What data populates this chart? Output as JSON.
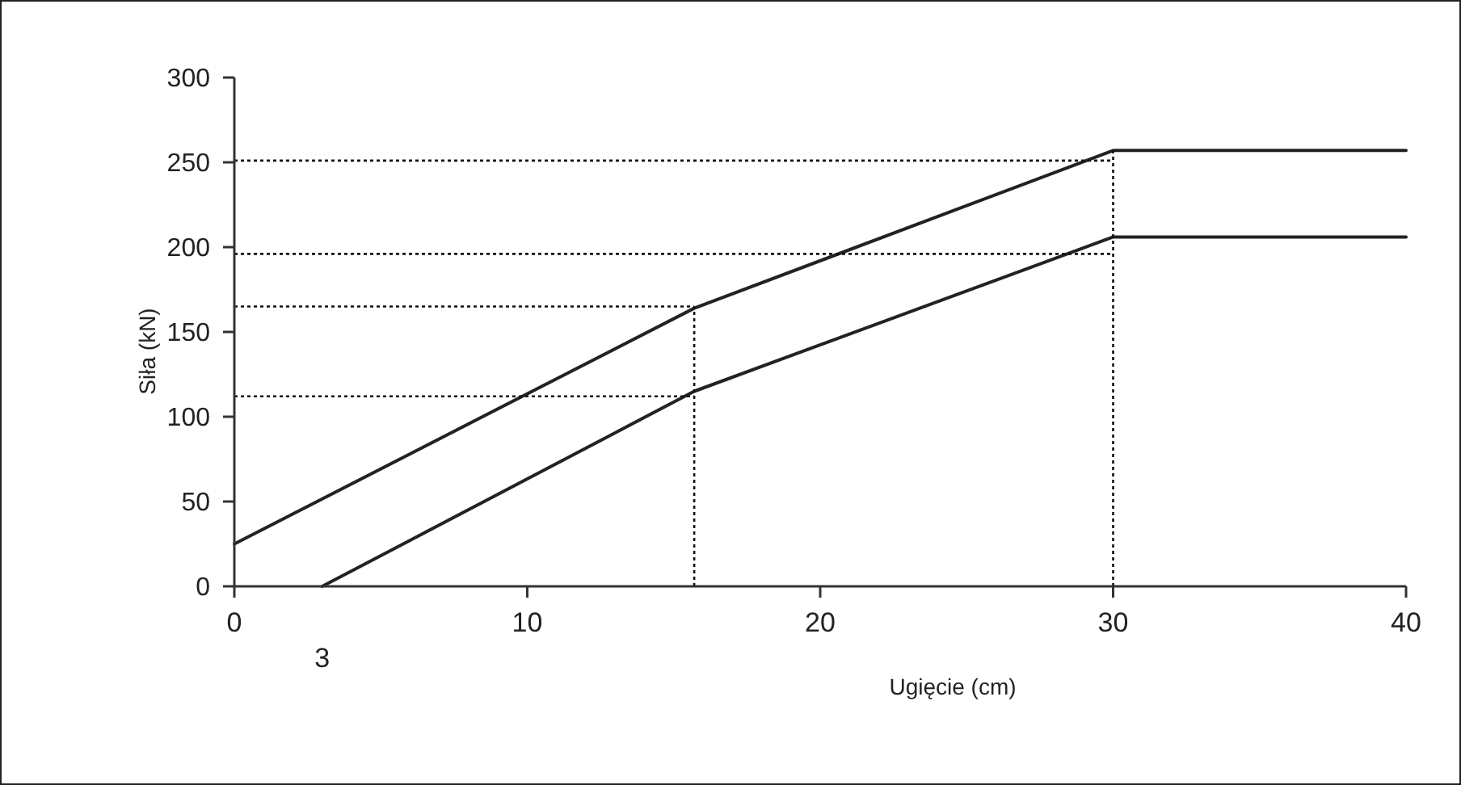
{
  "chart_data": {
    "type": "line",
    "xlabel": "Ugięcie (cm)",
    "ylabel": "Siła (kN)",
    "xlim": [
      0,
      40
    ],
    "ylim": [
      0,
      300
    ],
    "xticks": [
      0,
      10,
      20,
      30,
      40
    ],
    "yticks": [
      0,
      50,
      100,
      150,
      200,
      250,
      300
    ],
    "grid": false,
    "marker": "none",
    "annotations": [
      {
        "text": "3",
        "x": 3,
        "y": 0
      }
    ],
    "series": [
      {
        "color": "#222222",
        "line_style": "solid",
        "x": [
          0,
          15.7,
          30,
          40
        ],
        "values": [
          25,
          164,
          257,
          257
        ]
      },
      {
        "color": "#222222",
        "line_style": "solid",
        "x": [
          3,
          15.7,
          30,
          40
        ],
        "values": [
          0,
          115,
          206,
          206
        ]
      },
      {
        "color": "#111111",
        "line_style": "dotted",
        "x": [
          0,
          30
        ],
        "values": [
          251,
          251
        ]
      },
      {
        "color": "#111111",
        "line_style": "dotted",
        "x": [
          0,
          30
        ],
        "values": [
          196,
          196
        ]
      },
      {
        "color": "#111111",
        "line_style": "dotted",
        "x": [
          0,
          15.7
        ],
        "values": [
          165,
          165
        ]
      },
      {
        "color": "#111111",
        "line_style": "dotted",
        "x": [
          0,
          15.7
        ],
        "values": [
          112,
          112
        ]
      },
      {
        "color": "#111111",
        "line_style": "dotted",
        "x": [
          15.7,
          15.7
        ],
        "values": [
          0,
          165
        ]
      },
      {
        "color": "#111111",
        "line_style": "dotted",
        "x": [
          30,
          30
        ],
        "values": [
          0,
          257
        ]
      }
    ]
  }
}
